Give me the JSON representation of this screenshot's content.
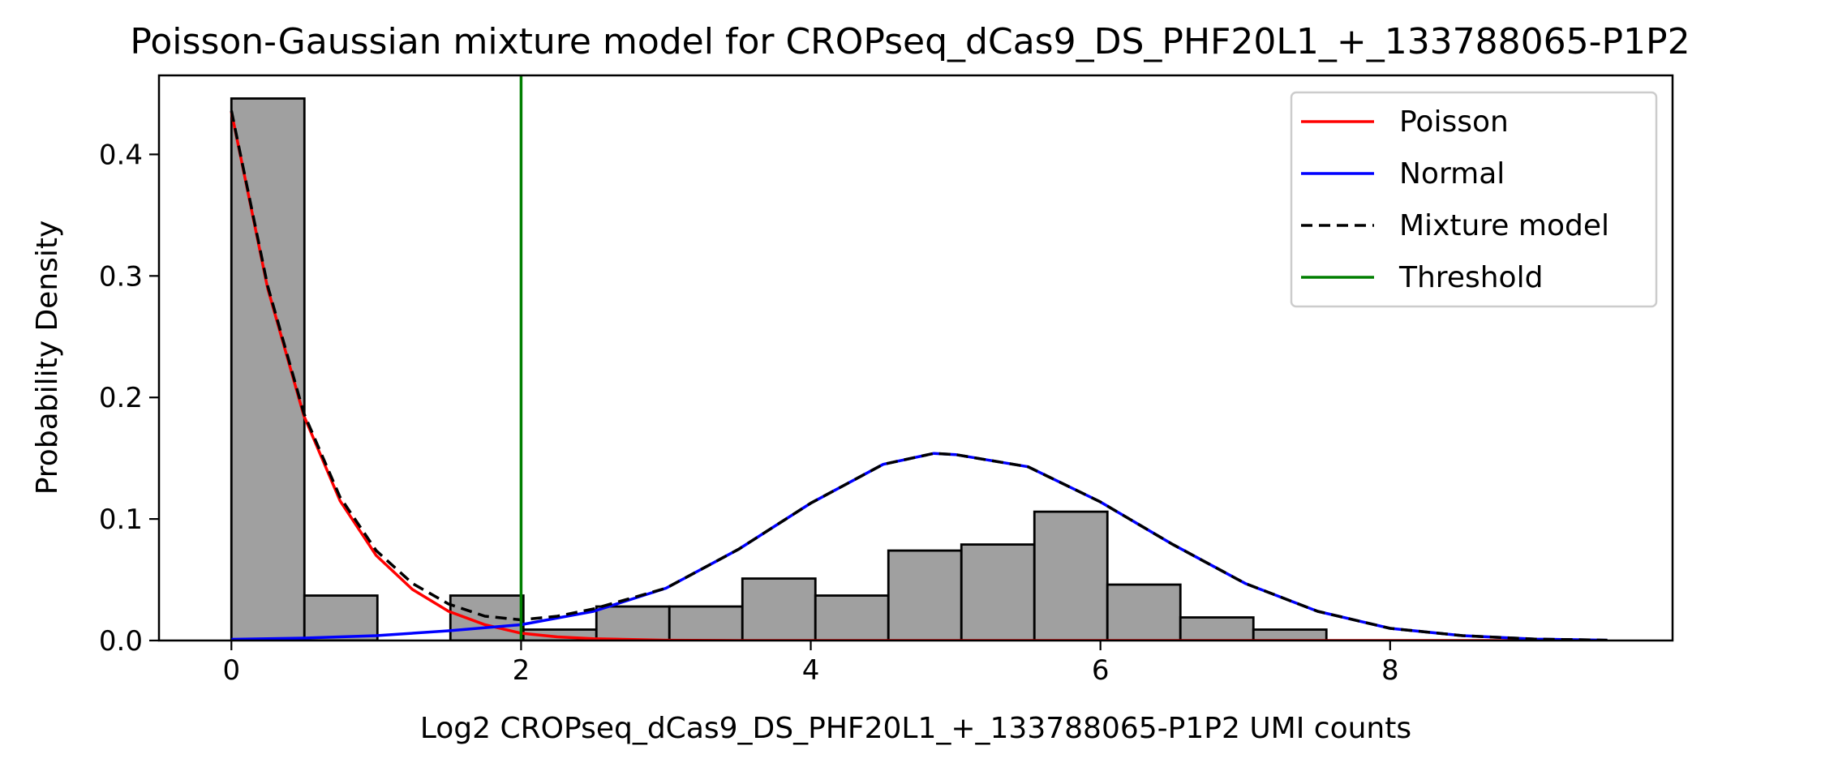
{
  "chart_data": {
    "type": "histogram",
    "title": "Poisson-Gaussian mixture model for CROPseq_dCas9_DS_PHF20L1_+_133788065-P1P2",
    "xlabel": "Log2 CROPseq_dCas9_DS_PHF20L1_+_133788065-P1P2 UMI counts",
    "ylabel": "Probability Density",
    "xlim": [
      -0.5,
      9.95
    ],
    "ylim": [
      0,
      0.465
    ],
    "xticks": [
      0,
      2,
      4,
      6,
      8
    ],
    "yticks": [
      0.0,
      0.1,
      0.2,
      0.3,
      0.4
    ],
    "ytick_labels": [
      "0.0",
      "0.1",
      "0.2",
      "0.3",
      "0.4"
    ],
    "histogram": {
      "bins": [
        {
          "x0": 0.0,
          "x1": 0.504,
          "density": 0.446
        },
        {
          "x0": 0.504,
          "x1": 1.008,
          "density": 0.037
        },
        {
          "x0": 1.008,
          "x1": 1.512,
          "density": 0.0
        },
        {
          "x0": 1.512,
          "x1": 2.016,
          "density": 0.037
        },
        {
          "x0": 2.016,
          "x1": 2.52,
          "density": 0.009
        },
        {
          "x0": 2.52,
          "x1": 3.024,
          "density": 0.028
        },
        {
          "x0": 3.024,
          "x1": 3.528,
          "density": 0.028
        },
        {
          "x0": 3.528,
          "x1": 4.032,
          "density": 0.051
        },
        {
          "x0": 4.032,
          "x1": 4.536,
          "density": 0.037
        },
        {
          "x0": 4.536,
          "x1": 5.04,
          "density": 0.074
        },
        {
          "x0": 5.04,
          "x1": 5.544,
          "density": 0.079
        },
        {
          "x0": 5.544,
          "x1": 6.048,
          "density": 0.106
        },
        {
          "x0": 6.048,
          "x1": 6.552,
          "density": 0.046
        },
        {
          "x0": 6.552,
          "x1": 7.056,
          "density": 0.019
        },
        {
          "x0": 7.056,
          "x1": 7.56,
          "density": 0.009
        }
      ],
      "fill_color": "#a0a0a0",
      "edge_color": "#000000"
    },
    "series": [
      {
        "name": "Poisson",
        "style": "solid",
        "color": "#ff0000",
        "x": [
          0.0,
          0.25,
          0.5,
          0.75,
          1.0,
          1.25,
          1.5,
          1.75,
          2.0,
          2.25,
          2.5,
          3.0,
          3.5,
          4.0,
          5.0,
          6.0,
          7.0,
          8.0,
          9.0,
          9.5
        ],
        "y": [
          0.435,
          0.29,
          0.185,
          0.115,
          0.07,
          0.042,
          0.024,
          0.013,
          0.006,
          0.003,
          0.0015,
          0.0003,
          0.0,
          0.0,
          0.0,
          0.0,
          0.0,
          0.0,
          0.0,
          0.0
        ]
      },
      {
        "name": "Normal",
        "style": "solid",
        "color": "#0000ff",
        "x": [
          0.0,
          0.5,
          1.0,
          1.5,
          2.0,
          2.5,
          3.0,
          3.5,
          4.0,
          4.5,
          4.85,
          5.0,
          5.5,
          6.0,
          6.5,
          7.0,
          7.5,
          8.0,
          8.5,
          9.0,
          9.5
        ],
        "y": [
          0.001,
          0.002,
          0.004,
          0.008,
          0.013,
          0.024,
          0.043,
          0.075,
          0.113,
          0.145,
          0.154,
          0.153,
          0.143,
          0.114,
          0.079,
          0.047,
          0.024,
          0.01,
          0.004,
          0.0012,
          0.0003
        ]
      },
      {
        "name": "Mixture model",
        "style": "dashed",
        "color": "#000000",
        "x": [
          0.0,
          0.25,
          0.5,
          0.75,
          1.0,
          1.25,
          1.5,
          1.75,
          2.0,
          2.25,
          2.5,
          3.0,
          3.5,
          4.0,
          4.5,
          4.85,
          5.0,
          5.5,
          6.0,
          6.5,
          7.0,
          7.5,
          8.0,
          8.5,
          9.0,
          9.5
        ],
        "y": [
          0.436,
          0.292,
          0.187,
          0.118,
          0.074,
          0.047,
          0.03,
          0.02,
          0.017,
          0.02,
          0.026,
          0.043,
          0.075,
          0.113,
          0.145,
          0.154,
          0.153,
          0.143,
          0.114,
          0.079,
          0.047,
          0.024,
          0.01,
          0.004,
          0.0012,
          0.0003
        ]
      },
      {
        "name": "Threshold",
        "style": "vline",
        "color": "#007f00",
        "x": 2.0
      }
    ],
    "legend": {
      "position": "top-right",
      "entries": [
        {
          "label": "Poisson",
          "color": "#ff0000",
          "style": "solid"
        },
        {
          "label": "Normal",
          "color": "#0000ff",
          "style": "solid"
        },
        {
          "label": "Mixture model",
          "color": "#000000",
          "style": "dashed"
        },
        {
          "label": "Threshold",
          "color": "#007f00",
          "style": "solid"
        }
      ]
    },
    "grid": false
  }
}
